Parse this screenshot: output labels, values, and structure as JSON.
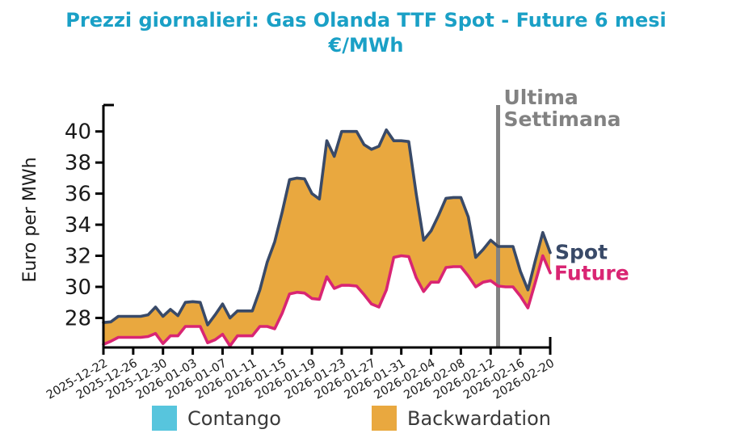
{
  "title": {
    "line1": "Prezzi giornalieri: Gas Olanda TTF Spot - Future 6 mesi",
    "line2": "€/MWh",
    "color": "#1aa0c6"
  },
  "legend": {
    "items": [
      {
        "label": "Contango",
        "color": "#57c5dd"
      },
      {
        "label": "Backwardation",
        "color": "#e9a83f"
      }
    ]
  },
  "chart_data": {
    "type": "area",
    "title": "Prezzi giornalieri: Gas Olanda TTF Spot - Future 6 mesi €/MWh",
    "ylabel": "Euro per MWh",
    "yticks": [
      28,
      30,
      32,
      34,
      36,
      38,
      40
    ],
    "ylim": [
      26.1,
      41.7
    ],
    "grid": false,
    "x_dates": [
      "2025-12-22",
      "2025-12-23",
      "2025-12-24",
      "2025-12-25",
      "2025-12-26",
      "2025-12-27",
      "2025-12-28",
      "2025-12-29",
      "2025-12-30",
      "2025-12-31",
      "2026-01-01",
      "2026-01-02",
      "2026-01-03",
      "2026-01-04",
      "2026-01-05",
      "2026-01-06",
      "2026-01-07",
      "2026-01-08",
      "2026-01-09",
      "2026-01-10",
      "2026-01-11",
      "2026-01-12",
      "2026-01-13",
      "2026-01-14",
      "2026-01-15",
      "2026-01-16",
      "2026-01-17",
      "2026-01-18",
      "2026-01-19",
      "2026-01-20",
      "2026-01-21",
      "2026-01-22",
      "2026-01-23",
      "2026-01-24",
      "2026-01-25",
      "2026-01-26",
      "2026-01-27",
      "2026-01-28",
      "2026-01-29",
      "2026-01-30",
      "2026-01-31",
      "2026-02-01",
      "2026-02-02",
      "2026-02-03",
      "2026-02-04",
      "2026-02-05",
      "2026-02-06",
      "2026-02-07",
      "2026-02-08",
      "2026-02-09",
      "2026-02-10",
      "2026-02-11",
      "2026-02-12",
      "2026-02-13",
      "2026-02-14",
      "2026-02-15",
      "2026-02-16",
      "2026-02-17",
      "2026-02-18",
      "2026-02-19",
      "2026-02-20"
    ],
    "xtick_labels": [
      "2025-12-22",
      "2025-12-26",
      "2025-12-30",
      "2026-01-03",
      "2026-01-07",
      "2026-01-11",
      "2026-01-15",
      "2026-01-19",
      "2026-01-23",
      "2026-01-27",
      "2026-01-31",
      "2026-02-04",
      "2026-02-08",
      "2026-02-12",
      "2026-02-16",
      "2026-02-20"
    ],
    "series": [
      {
        "name": "Spot",
        "color": "#394a68",
        "values": [
          27.7,
          27.75,
          28.1,
          28.1,
          28.1,
          28.1,
          28.2,
          28.7,
          28.1,
          28.55,
          28.15,
          29.0,
          29.05,
          29.0,
          27.55,
          28.2,
          28.9,
          28.0,
          28.45,
          28.45,
          28.45,
          29.8,
          31.6,
          32.9,
          34.8,
          36.9,
          37.0,
          36.95,
          36.0,
          35.65,
          39.4,
          38.4,
          40.0,
          40.0,
          40.0,
          39.15,
          38.85,
          39.05,
          40.1,
          39.4,
          39.4,
          39.35,
          36.0,
          33.0,
          33.6,
          34.6,
          35.7,
          35.75,
          35.75,
          34.5,
          31.9,
          32.4,
          33.0,
          32.6,
          32.6,
          32.6,
          31.0,
          29.8,
          31.7,
          33.5,
          32.2
        ]
      },
      {
        "name": "Future",
        "color": "#d92573",
        "values": [
          26.3,
          26.5,
          26.75,
          26.75,
          26.75,
          26.75,
          26.8,
          27.0,
          26.35,
          26.85,
          26.85,
          27.45,
          27.45,
          27.45,
          26.4,
          26.6,
          26.95,
          26.2,
          26.85,
          26.85,
          26.85,
          27.45,
          27.45,
          27.3,
          28.3,
          29.55,
          29.65,
          29.6,
          29.25,
          29.2,
          30.65,
          29.9,
          30.1,
          30.1,
          30.05,
          29.5,
          28.9,
          28.7,
          29.8,
          31.9,
          32.0,
          31.95,
          30.6,
          29.7,
          30.3,
          30.3,
          31.25,
          31.3,
          31.3,
          30.7,
          30.0,
          30.3,
          30.4,
          30.05,
          30.0,
          30.0,
          29.4,
          28.65,
          30.3,
          32.0,
          30.9
        ]
      }
    ],
    "fill_between": {
      "backwardation_label": "Backwardation",
      "backwardation_color": "#e9a83f",
      "contango_label": "Contango",
      "contango_color": "#57c5dd"
    },
    "annotation": {
      "line1": "Ultima",
      "line2": "Settimana",
      "date": "2026-02-13",
      "color": "#828282"
    },
    "end_labels": [
      {
        "text": "Spot",
        "color": "#394a68"
      },
      {
        "text": "Future",
        "color": "#d92573"
      }
    ],
    "legend_position": "bottom",
    "axis_color": "#000000",
    "tick_label_color": "#1a1a1a"
  }
}
